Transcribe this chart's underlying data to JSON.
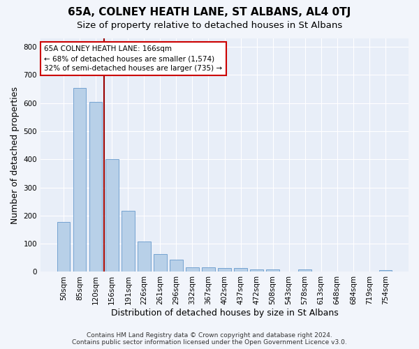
{
  "title": "65A, COLNEY HEATH LANE, ST ALBANS, AL4 0TJ",
  "subtitle": "Size of property relative to detached houses in St Albans",
  "xlabel": "Distribution of detached houses by size in St Albans",
  "ylabel": "Number of detached properties",
  "footer_line1": "Contains HM Land Registry data © Crown copyright and database right 2024.",
  "footer_line2": "Contains public sector information licensed under the Open Government Licence v3.0.",
  "bar_labels": [
    "50sqm",
    "85sqm",
    "120sqm",
    "156sqm",
    "191sqm",
    "226sqm",
    "261sqm",
    "296sqm",
    "332sqm",
    "367sqm",
    "402sqm",
    "437sqm",
    "472sqm",
    "508sqm",
    "543sqm",
    "578sqm",
    "613sqm",
    "648sqm",
    "684sqm",
    "719sqm",
    "754sqm"
  ],
  "bar_values": [
    178,
    655,
    605,
    400,
    218,
    107,
    63,
    43,
    17,
    16,
    13,
    13,
    8,
    8,
    0,
    8,
    0,
    0,
    0,
    0,
    7
  ],
  "bar_color": "#b8d0e8",
  "bar_edge_color": "#6699cc",
  "vline_color": "#990000",
  "vline_bar_index": 2.5,
  "annotation_text": "65A COLNEY HEATH LANE: 166sqm\n← 68% of detached houses are smaller (1,574)\n32% of semi-detached houses are larger (735) →",
  "annotation_box_color": "#ffffff",
  "annotation_box_edge": "#cc0000",
  "ylim": [
    0,
    830
  ],
  "yticks": [
    0,
    100,
    200,
    300,
    400,
    500,
    600,
    700,
    800
  ],
  "title_fontsize": 11,
  "subtitle_fontsize": 9.5,
  "axis_label_fontsize": 9,
  "tick_fontsize": 7.5,
  "annotation_fontsize": 7.5,
  "footer_fontsize": 6.5,
  "background_color": "#f2f5fb",
  "plot_bg_color": "#e8eef8",
  "grid_color": "#ffffff"
}
